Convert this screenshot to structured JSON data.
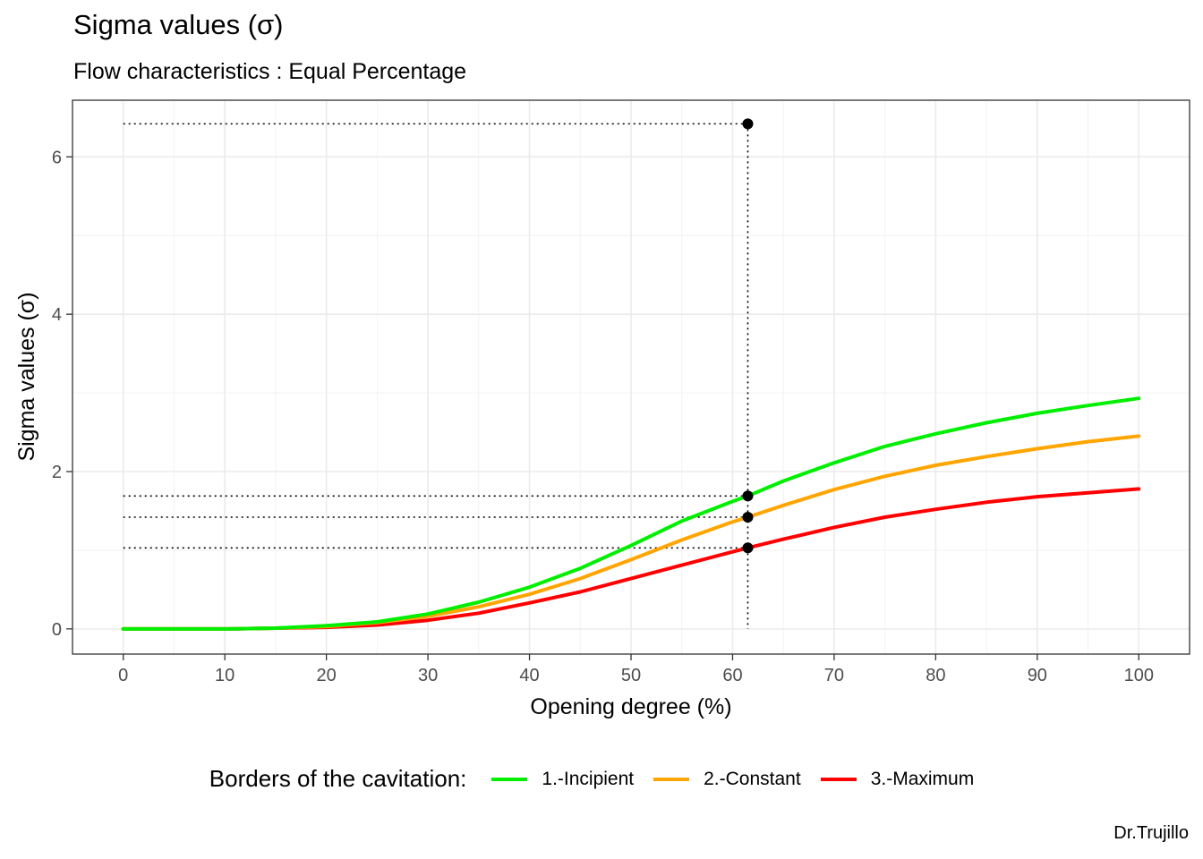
{
  "title": "Sigma values (σ)",
  "subtitle": "Flow characteristics : Equal Percentage",
  "caption": "Dr.Trujillo",
  "chart_data": {
    "type": "line",
    "xlabel": "Opening degree (%)",
    "ylabel": "Sigma values (σ)",
    "xlim": [
      -5,
      105
    ],
    "ylim": [
      -0.32,
      6.72
    ],
    "x_ticks": [
      0,
      10,
      20,
      30,
      40,
      50,
      60,
      70,
      80,
      90,
      100
    ],
    "y_ticks": [
      0,
      2,
      4,
      6
    ],
    "grid": true,
    "legend": {
      "title": "Borders of the cavitation:",
      "position": "bottom"
    },
    "x": [
      0,
      5,
      10,
      15,
      20,
      25,
      30,
      35,
      40,
      45,
      50,
      55,
      60,
      61.5,
      65,
      70,
      75,
      80,
      85,
      90,
      95,
      100
    ],
    "series": [
      {
        "name": "1.-Incipient",
        "color": "#00ee00",
        "values": [
          0,
          0,
          0,
          0.01,
          0.04,
          0.09,
          0.19,
          0.34,
          0.53,
          0.77,
          1.06,
          1.37,
          1.62,
          1.69,
          1.88,
          2.11,
          2.32,
          2.48,
          2.62,
          2.74,
          2.84,
          2.93
        ]
      },
      {
        "name": "2.-Constant",
        "color": "#ffa500",
        "values": [
          0,
          0,
          0,
          0.01,
          0.03,
          0.08,
          0.16,
          0.28,
          0.44,
          0.64,
          0.88,
          1.13,
          1.36,
          1.42,
          1.57,
          1.77,
          1.94,
          2.08,
          2.19,
          2.29,
          2.38,
          2.45
        ]
      },
      {
        "name": "3.-Maximum",
        "color": "#ff0000",
        "values": [
          0,
          0,
          0,
          0.01,
          0.02,
          0.05,
          0.11,
          0.2,
          0.33,
          0.47,
          0.64,
          0.81,
          0.98,
          1.03,
          1.14,
          1.29,
          1.42,
          1.52,
          1.61,
          1.68,
          1.73,
          1.78
        ]
      }
    ],
    "markers": [
      {
        "x": 61.5,
        "y": 6.42
      },
      {
        "x": 61.5,
        "y": 1.69
      },
      {
        "x": 61.5,
        "y": 1.42
      },
      {
        "x": 61.5,
        "y": 1.03
      }
    ]
  }
}
